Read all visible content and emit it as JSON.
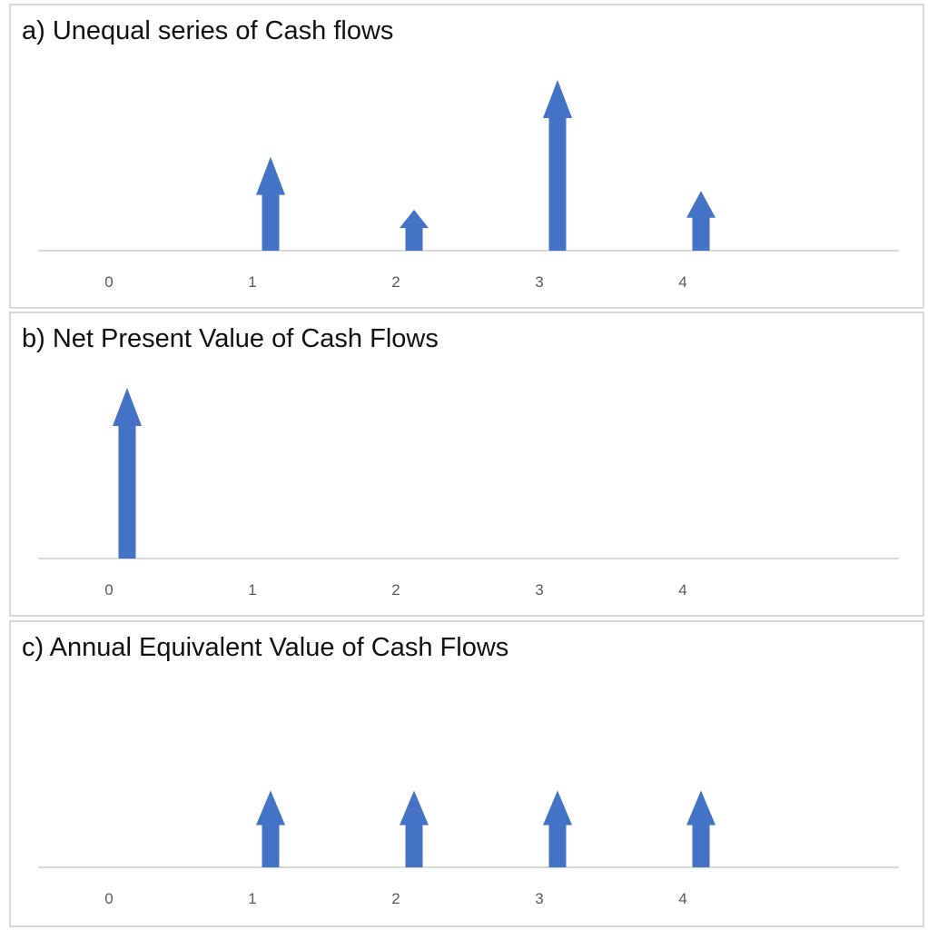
{
  "panels": [
    {
      "id": "a",
      "title": "a) Unequal series of Cash flows",
      "chart_data": {
        "type": "bar",
        "categories": [
          "0",
          "1",
          "2",
          "3",
          "4"
        ],
        "values": [
          0,
          55,
          24,
          100,
          35
        ],
        "arrow_color": "#4472c4",
        "axis_color": "#d9d9d9"
      }
    },
    {
      "id": "b",
      "title": "b) Net Present Value of Cash Flows",
      "chart_data": {
        "type": "bar",
        "categories": [
          "0",
          "1",
          "2",
          "3",
          "4"
        ],
        "values": [
          100,
          0,
          0,
          0,
          0
        ],
        "arrow_color": "#4472c4",
        "axis_color": "#d9d9d9"
      }
    },
    {
      "id": "c",
      "title": "c) Annual Equivalent Value of Cash Flows",
      "chart_data": {
        "type": "bar",
        "categories": [
          "0",
          "1",
          "2",
          "3",
          "4"
        ],
        "values": [
          0,
          45,
          45,
          45,
          45
        ],
        "arrow_color": "#4472c4",
        "axis_color": "#d9d9d9"
      }
    }
  ]
}
